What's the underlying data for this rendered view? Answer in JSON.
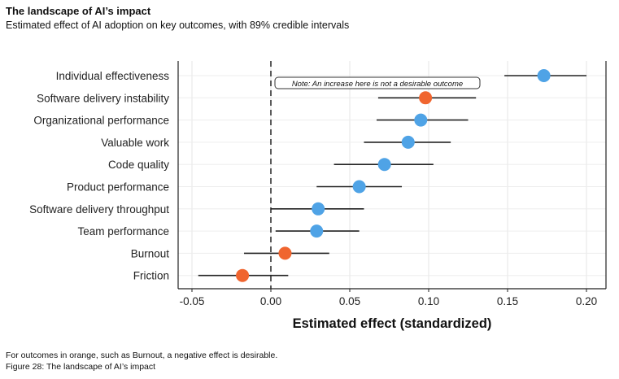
{
  "header": {
    "title": "The landscape of AI’s impact",
    "subtitle": "Estimated effect of AI adoption on key outcomes, with 89% credible intervals"
  },
  "footer": {
    "note": "For outcomes in orange, such as Burnout, a negative effect is desirable.",
    "caption": "Figure 28: The landscape of AI’s impact"
  },
  "chart_data": {
    "type": "scatter",
    "xlabel": "Estimated effect (standardized)",
    "ylabel": "",
    "xlim": [
      -0.06,
      0.21
    ],
    "xticks": [
      -0.05,
      0.0,
      0.05,
      0.1,
      0.15,
      0.2
    ],
    "xtick_labels": [
      "-0.05",
      "0.00",
      "0.05",
      "0.10",
      "0.15",
      "0.20"
    ],
    "grid": true,
    "reference_line": {
      "x": 0,
      "style": "dashed"
    },
    "annotation": "Note: An increase here is not a desirable outcome",
    "colors": {
      "positive_desirable": "#4fa3e6",
      "negative_desirable": "#f0652f"
    },
    "points": [
      {
        "label": "Individual effectiveness",
        "estimate": 0.173,
        "lower": 0.148,
        "upper": 0.2,
        "color": "#4fa3e6"
      },
      {
        "label": "Software delivery instability",
        "estimate": 0.098,
        "lower": 0.068,
        "upper": 0.13,
        "color": "#f0652f"
      },
      {
        "label": "Organizational performance",
        "estimate": 0.095,
        "lower": 0.067,
        "upper": 0.125,
        "color": "#4fa3e6"
      },
      {
        "label": "Valuable work",
        "estimate": 0.087,
        "lower": 0.059,
        "upper": 0.114,
        "color": "#4fa3e6"
      },
      {
        "label": "Code quality",
        "estimate": 0.072,
        "lower": 0.04,
        "upper": 0.103,
        "color": "#4fa3e6"
      },
      {
        "label": "Product performance",
        "estimate": 0.056,
        "lower": 0.029,
        "upper": 0.083,
        "color": "#4fa3e6"
      },
      {
        "label": "Software delivery throughput",
        "estimate": 0.03,
        "lower": 0.0,
        "upper": 0.059,
        "color": "#4fa3e6"
      },
      {
        "label": "Team performance",
        "estimate": 0.029,
        "lower": 0.003,
        "upper": 0.056,
        "color": "#4fa3e6"
      },
      {
        "label": "Burnout",
        "estimate": 0.009,
        "lower": -0.017,
        "upper": 0.037,
        "color": "#f0652f"
      },
      {
        "label": "Friction",
        "estimate": -0.018,
        "lower": -0.046,
        "upper": 0.011,
        "color": "#f0652f"
      }
    ]
  }
}
